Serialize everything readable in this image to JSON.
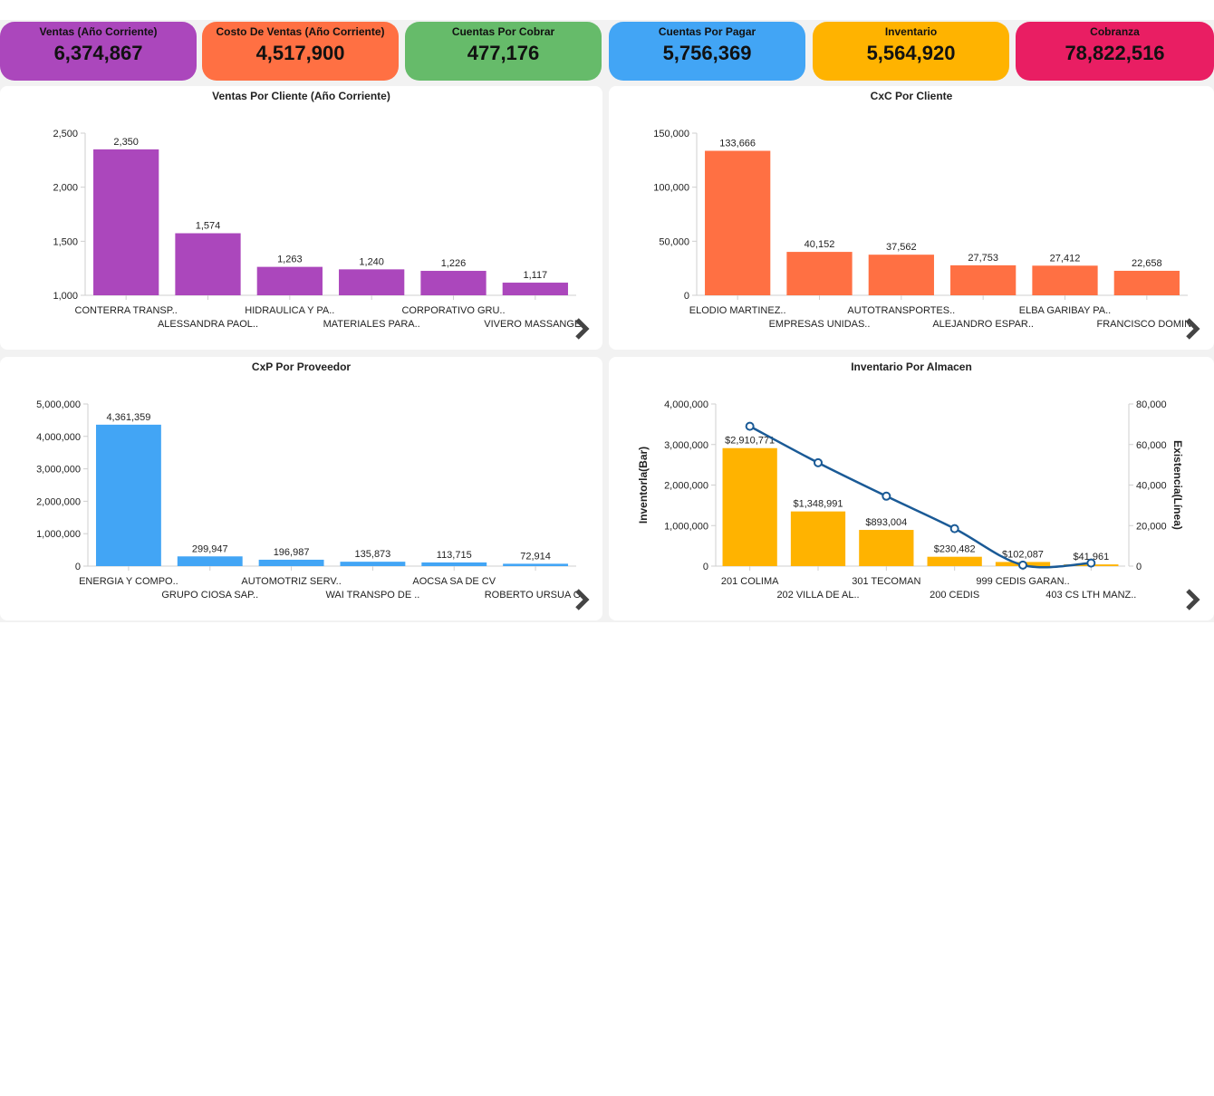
{
  "kpis": [
    {
      "label": "Ventas (Año Corriente)",
      "value": "6,374,867",
      "color": "#ab47bc"
    },
    {
      "label": "Costo De Ventas (Año Corriente)",
      "value": "4,517,900",
      "color": "#ff7043"
    },
    {
      "label": "Cuentas Por Cobrar",
      "value": "477,176",
      "color": "#66bb6a"
    },
    {
      "label": "Cuentas Por Pagar",
      "value": "5,756,369",
      "color": "#42a5f5"
    },
    {
      "label": "Inventario",
      "value": "5,564,920",
      "color": "#ffb300"
    },
    {
      "label": "Cobranza",
      "value": "78,822,516",
      "color": "#e91e63"
    }
  ],
  "panels": {
    "ventas": {
      "title": "Ventas Por Cliente (Año Corriente)"
    },
    "cxc": {
      "title": "CxC Por Cliente"
    },
    "cxp": {
      "title": "CxP Por Proveedor"
    },
    "inventario": {
      "title": "Inventario Por Almacen"
    }
  },
  "icons": {
    "next": "chevron-right-icon"
  },
  "chart_data": [
    {
      "id": "ventas",
      "type": "bar",
      "title": "Ventas Por Cliente (Año Corriente)",
      "color": "#ab47bc",
      "categories": [
        "CONTERRA TRANSP..",
        "ALESSANDRA PAOL..",
        "HIDRAULICA Y PA..",
        "MATERIALES PARA..",
        "CORPORATIVO GRU..",
        "VIVERO MASSANGE.."
      ],
      "values": [
        2350,
        1574,
        1263,
        1240,
        1226,
        1117
      ],
      "data_labels": [
        "2,350",
        "1,574",
        "1,263",
        "1,240",
        "1,226",
        "1,117"
      ],
      "yticks": [
        "1,000",
        "1,500",
        "2,000",
        "2,500"
      ],
      "ytick_values": [
        1000,
        1500,
        2000,
        2500
      ],
      "ylim": [
        1000,
        2500
      ],
      "xlabel": "",
      "ylabel": ""
    },
    {
      "id": "cxc",
      "type": "bar",
      "title": "CxC Por Cliente",
      "color": "#ff7043",
      "categories": [
        "ELODIO MARTINEZ..",
        "EMPRESAS UNIDAS..",
        "AUTOTRANSPORTES..",
        "ALEJANDRO ESPAR..",
        "ELBA GARIBAY PA..",
        "FRANCISCO DOMIN.."
      ],
      "values": [
        133666,
        40152,
        37562,
        27753,
        27412,
        22658
      ],
      "data_labels": [
        "133,666",
        "40,152",
        "37,562",
        "27,753",
        "27,412",
        "22,658"
      ],
      "yticks": [
        "0",
        "50,000",
        "100,000",
        "150,000"
      ],
      "ytick_values": [
        0,
        50000,
        100000,
        150000
      ],
      "ylim": [
        0,
        150000
      ],
      "xlabel": "",
      "ylabel": ""
    },
    {
      "id": "cxp",
      "type": "bar",
      "title": "CxP Por Proveedor",
      "color": "#42a5f5",
      "categories": [
        "ENERGIA Y COMPO..",
        "GRUPO CIOSA SAP..",
        "AUTOMOTRIZ SERV..",
        "WAI TRANSPO DE ..",
        "AOCSA SA DE CV",
        "ROBERTO URSUA O.."
      ],
      "values": [
        4361359,
        299947,
        196987,
        135873,
        113715,
        72914
      ],
      "data_labels": [
        "4,361,359",
        "299,947",
        "196,987",
        "135,873",
        "113,715",
        "72,914"
      ],
      "yticks": [
        "0",
        "1,000,000",
        "2,000,000",
        "3,000,000",
        "4,000,000",
        "5,000,000"
      ],
      "ytick_values": [
        0,
        1000000,
        2000000,
        3000000,
        4000000,
        5000000
      ],
      "ylim": [
        0,
        5000000
      ],
      "xlabel": "",
      "ylabel": ""
    },
    {
      "id": "inventario",
      "type": "bar",
      "title": "Inventario Por Almacen",
      "color": "#ffb300",
      "line_color": "#1a5a96",
      "categories": [
        "201 COLIMA",
        "202 VILLA DE AL..",
        "301 TECOMAN",
        "200 CEDIS",
        "999 CEDIS GARAN..",
        "403 CS LTH MANZ.."
      ],
      "values": [
        2910771,
        1348991,
        893004,
        230482,
        102087,
        41961
      ],
      "data_labels": [
        "$2,910,771",
        "$1,348,991",
        "$893,004",
        "$230,482",
        "$102,087",
        "$41,961"
      ],
      "line_values": [
        69000,
        51000,
        34500,
        18500,
        500,
        1500
      ],
      "yticks": [
        "0",
        "1,000,000",
        "2,000,000",
        "3,000,000",
        "4,000,000"
      ],
      "ytick_values": [
        0,
        1000000,
        2000000,
        3000000,
        4000000
      ],
      "ylim": [
        0,
        4000000
      ],
      "y2ticks": [
        "0",
        "20,000",
        "40,000",
        "60,000",
        "80,000"
      ],
      "y2tick_values": [
        0,
        20000,
        40000,
        60000,
        80000
      ],
      "y2lim": [
        0,
        80000
      ],
      "ylabel": "Inventorla(Bar)",
      "y2label": "Existencia(Línea)",
      "xlabel": ""
    }
  ]
}
